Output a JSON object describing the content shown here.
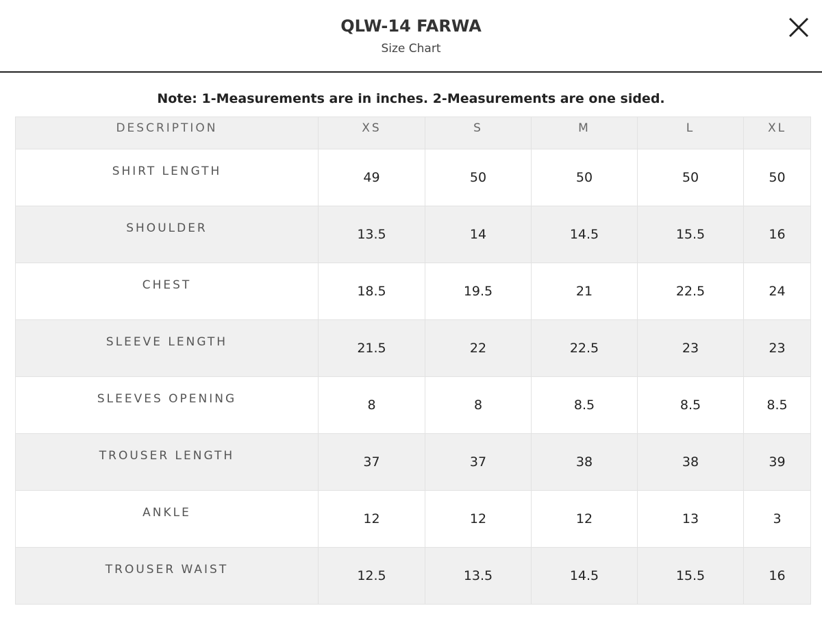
{
  "header": {
    "title": "QLW-14 FARWA",
    "subtitle": "Size Chart"
  },
  "note": "Note: 1-Measurements are in inches. 2-Measurements are one sided.",
  "table": {
    "columns": [
      "DESCRIPTION",
      "XS",
      "S",
      "M",
      "L",
      "XL"
    ],
    "rows": [
      [
        "SHIRT LENGTH",
        49,
        50,
        50,
        50,
        50
      ],
      [
        "SHOULDER",
        13.5,
        14,
        14.5,
        15.5,
        16
      ],
      [
        "CHEST",
        18.5,
        19.5,
        21,
        22.5,
        24
      ],
      [
        "SLEEVE LENGTH",
        21.5,
        22,
        22.5,
        23,
        23
      ],
      [
        "SLEEVES OPENING",
        8,
        8,
        8.5,
        8.5,
        8.5
      ],
      [
        "TROUSER LENGTH",
        37,
        37,
        38,
        38,
        39
      ],
      [
        "ANKLE",
        12,
        12,
        12,
        13,
        3
      ],
      [
        "TROUSER WAIST",
        12.5,
        13.5,
        14.5,
        15.5,
        16
      ]
    ]
  }
}
